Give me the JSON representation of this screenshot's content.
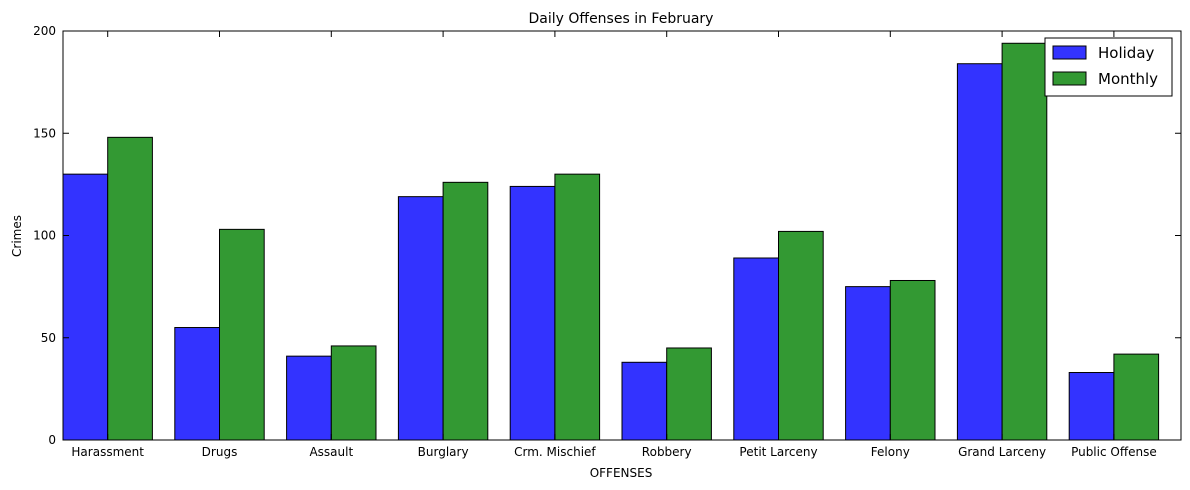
{
  "chart_data": {
    "type": "bar",
    "title": "Daily Offenses in February",
    "xlabel": "OFFENSES",
    "ylabel": "Crimes",
    "ylim": [
      0,
      200
    ],
    "yticks": [
      0,
      50,
      100,
      150,
      200
    ],
    "categories": [
      "Harassment",
      "Drugs",
      "Assault",
      "Burglary",
      "Crm. Mischief",
      "Robbery",
      "Petit Larceny",
      "Felony",
      "Grand Larceny",
      "Public Offense"
    ],
    "series": [
      {
        "name": "Holiday",
        "color": "#3333ff",
        "values": [
          130,
          55,
          41,
          119,
          124,
          38,
          89,
          75,
          184,
          33
        ]
      },
      {
        "name": "Monthly",
        "color": "#339933",
        "values": [
          148,
          103,
          46,
          126,
          130,
          45,
          102,
          78,
          194,
          42
        ]
      }
    ],
    "grid": false,
    "legend": "top-right"
  }
}
